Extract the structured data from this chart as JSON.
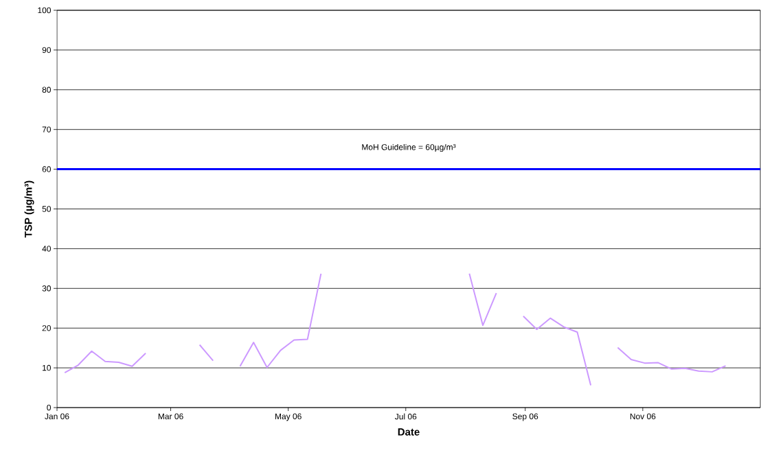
{
  "chart_data": {
    "type": "line",
    "xlabel": "Date",
    "ylabel": "TSP (µg/m³)",
    "xlim": [
      "2006-01-01",
      "2007-01-01"
    ],
    "xticks": [
      {
        "value": "2006-01-01",
        "label": "Jan 06"
      },
      {
        "value": "2006-03-01",
        "label": "Mar 06"
      },
      {
        "value": "2006-05-01",
        "label": "May 06"
      },
      {
        "value": "2006-07-01",
        "label": "Jul 06"
      },
      {
        "value": "2006-09-01",
        "label": "Sep 06"
      },
      {
        "value": "2006-11-01",
        "label": "Nov 06"
      }
    ],
    "ylim": [
      0,
      100
    ],
    "yticks": [
      0,
      10,
      20,
      30,
      40,
      50,
      60,
      70,
      80,
      90,
      100
    ],
    "grid": "y",
    "marker": "none",
    "line_style": "solid",
    "series": [
      {
        "color": "#cc99ff",
        "x": [
          "2006-01-05",
          "2006-01-12",
          "2006-01-19",
          "2006-01-26",
          "2006-02-02",
          "2006-02-09",
          "2006-02-16",
          "2006-03-02",
          "2006-03-16",
          "2006-03-23",
          "2006-03-30",
          "2006-04-06",
          "2006-04-13",
          "2006-04-20",
          "2006-04-27",
          "2006-05-04",
          "2006-05-11",
          "2006-05-18",
          "2006-06-22",
          "2006-08-03",
          "2006-08-10",
          "2006-08-17",
          "2006-08-24",
          "2006-08-31",
          "2006-09-07",
          "2006-09-14",
          "2006-09-21",
          "2006-09-28",
          "2006-10-05",
          "2006-10-12",
          "2006-10-19",
          "2006-10-26",
          "2006-11-02",
          "2006-11-09",
          "2006-11-16",
          "2006-11-23",
          "2006-11-30",
          "2006-12-07",
          "2006-12-14"
        ],
        "values": [
          8.8,
          10.7,
          14.2,
          11.6,
          11.4,
          10.4,
          13.7,
          null,
          15.8,
          11.8,
          null,
          10.4,
          16.4,
          10.1,
          14.4,
          17.0,
          17.2,
          33.7,
          null,
          33.7,
          20.7,
          28.8,
          null,
          23.0,
          19.7,
          22.5,
          20.3,
          19.0,
          5.6,
          null,
          15.1,
          12.1,
          11.2,
          11.3,
          9.7,
          9.9,
          9.2,
          9.0,
          10.5
        ]
      }
    ],
    "ref_lines": [
      {
        "axis": "y",
        "value": 60,
        "label": "MoH Guideline = 60µg/m³",
        "color": "#0000ff",
        "line_style": "solid"
      }
    ]
  }
}
